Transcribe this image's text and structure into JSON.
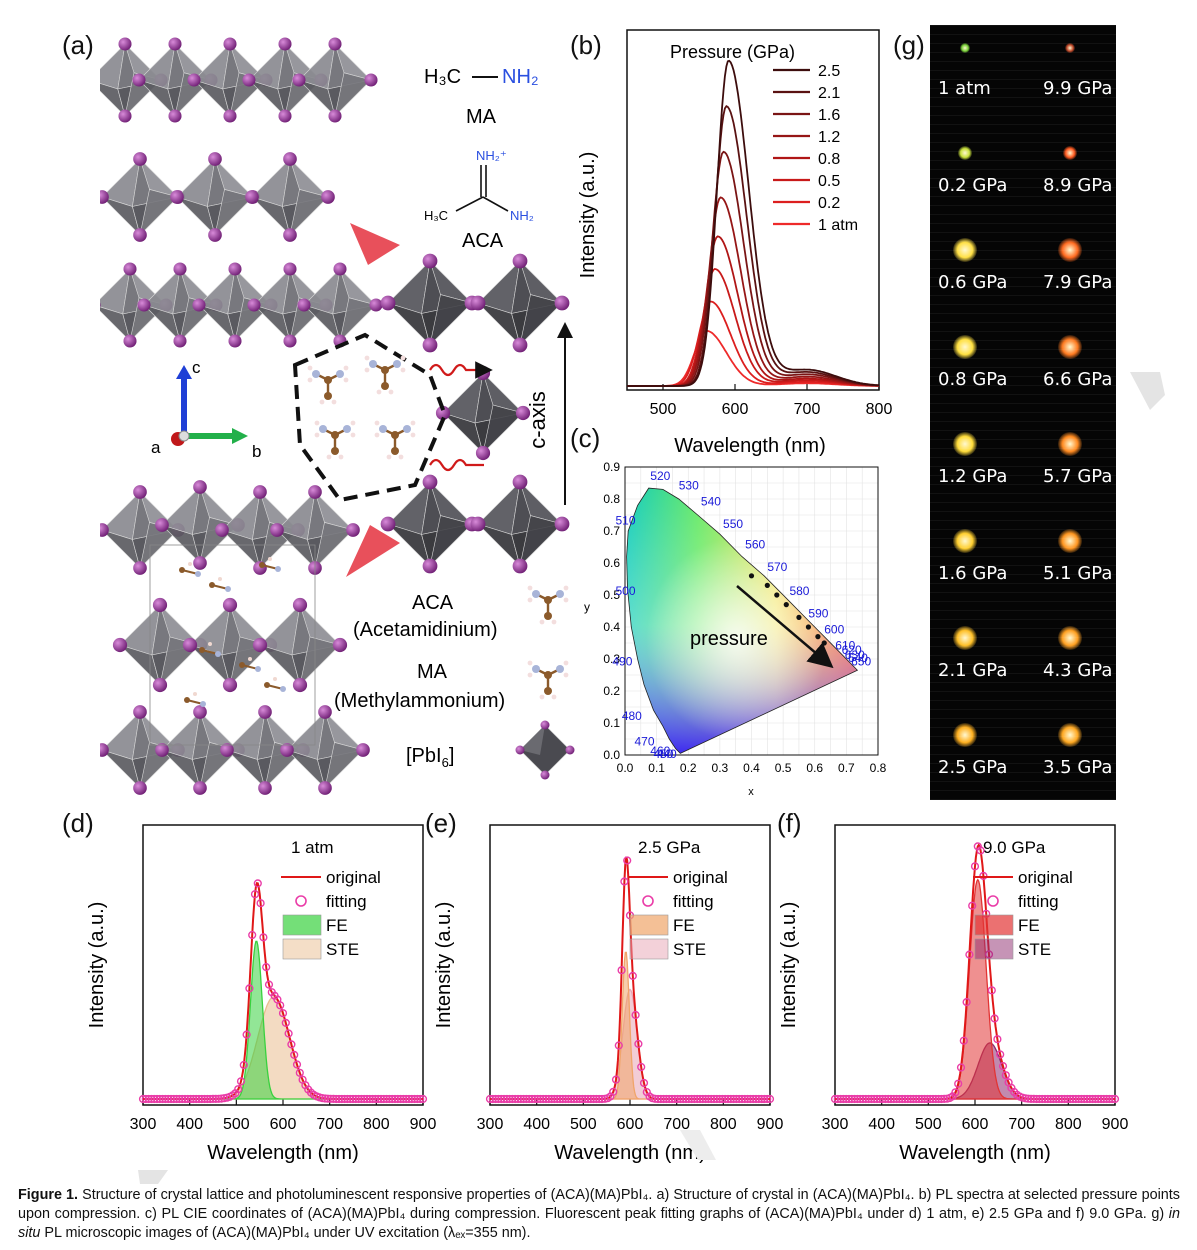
{
  "panels": {
    "a": "(a)",
    "b": "(b)",
    "c": "(c)",
    "d": "(d)",
    "e": "(e)",
    "f": "(f)",
    "g": "(g)"
  },
  "panel_a": {
    "ma_formula_left": "H₃C",
    "ma_formula_right": "NH₂",
    "ma_label": "MA",
    "aca_nh2_plus": "NH₂⁺",
    "aca_h3c": "H₃C",
    "aca_nh2": "NH₂",
    "aca_label": "ACA",
    "axis_c": "c",
    "axis_a": "a",
    "axis_b": "b",
    "c_axis": "c-axis",
    "legend_aca": "ACA",
    "legend_aca_full": "(Acetamidinium)",
    "legend_ma": "MA",
    "legend_ma_full": "(Methylammonium)",
    "legend_pbi6": "[PbI",
    "legend_pbi6_sub": "6",
    "legend_pbi6_close": "]",
    "legend_y": "y",
    "colors": {
      "octahedron": "#4a4a4f",
      "iodine": "#8a2a8e",
      "arrow": "#e8505b",
      "c_axis_blue": "#1f3fd6",
      "b_axis_green": "#22b04a",
      "a_axis_red": "#c0181a"
    }
  },
  "chart_data": [
    {
      "id": "b",
      "type": "line",
      "title": "",
      "xlabel": "Wavelength (nm)",
      "ylabel": "Intensity (a.u.)",
      "xlim": [
        450,
        800
      ],
      "xticks": [
        500,
        600,
        700,
        800
      ],
      "legend_title": "Pressure (GPa)",
      "legend_position": "top-right",
      "series": [
        {
          "name": "2.5",
          "color": "#3d0d0d",
          "peak_x": 591,
          "peak_y": 1.0
        },
        {
          "name": "2.1",
          "color": "#5a1212",
          "peak_x": 588,
          "peak_y": 0.86
        },
        {
          "name": "1.6",
          "color": "#7a1515",
          "peak_x": 584,
          "peak_y": 0.72
        },
        {
          "name": "1.2",
          "color": "#961616",
          "peak_x": 580,
          "peak_y": 0.58
        },
        {
          "name": "0.8",
          "color": "#b01616",
          "peak_x": 576,
          "peak_y": 0.46
        },
        {
          "name": "0.5",
          "color": "#c81a1a",
          "peak_x": 572,
          "peak_y": 0.36
        },
        {
          "name": "0.2",
          "color": "#dc1f1f",
          "peak_x": 566,
          "peak_y": 0.26
        },
        {
          "name": "1 atm",
          "color": "#ee2a2a",
          "peak_x": 560,
          "peak_y": 0.17
        }
      ]
    },
    {
      "id": "c",
      "type": "scatter",
      "title": "",
      "xlabel": "x",
      "ylabel": "",
      "xlim": [
        0.0,
        0.8
      ],
      "ylim": [
        0.0,
        0.9
      ],
      "xticks": [
        "0.0",
        "0.1",
        "0.2",
        "0.3",
        "0.4",
        "0.5",
        "0.6",
        "0.7",
        "0.8"
      ],
      "yticks": [
        "0.0",
        "0.1",
        "0.2",
        "0.3",
        "0.4",
        "0.5",
        "0.6",
        "0.7",
        "0.8",
        "0.9"
      ],
      "wavelength_labels": [
        "520",
        "530",
        "540",
        "550",
        "560",
        "570",
        "580",
        "590",
        "600",
        "610",
        "620",
        "630",
        "640",
        "650",
        "510",
        "500",
        "490",
        "480",
        "470",
        "460",
        "450",
        "440"
      ],
      "annotation": "pressure",
      "points": [
        {
          "x": 0.4,
          "y": 0.56
        },
        {
          "x": 0.45,
          "y": 0.53
        },
        {
          "x": 0.48,
          "y": 0.5
        },
        {
          "x": 0.51,
          "y": 0.47
        },
        {
          "x": 0.55,
          "y": 0.43
        },
        {
          "x": 0.58,
          "y": 0.4
        },
        {
          "x": 0.61,
          "y": 0.37
        },
        {
          "x": 0.63,
          "y": 0.35
        }
      ]
    },
    {
      "id": "d",
      "type": "line",
      "title": "",
      "annotation": "1 atm",
      "xlabel": "Wavelength (nm)",
      "ylabel": "Intensity (a.u.)",
      "xlim": [
        300,
        900
      ],
      "xticks": [
        "300",
        "400",
        "500",
        "600",
        "700",
        "800",
        "900"
      ],
      "legend": [
        "original",
        "fitting",
        "FE",
        "STE"
      ],
      "components": [
        {
          "name": "FE",
          "center": 543,
          "fwhm": 30,
          "amp": 0.62,
          "color": "#39d13f"
        },
        {
          "name": "STE",
          "center": 580,
          "fwhm": 80,
          "amp": 0.4,
          "color": "#e9bd8f"
        }
      ]
    },
    {
      "id": "e",
      "type": "line",
      "title": "",
      "annotation": "2.5 GPa",
      "xlabel": "Wavelength (nm)",
      "ylabel": "Intensity (a.u.)",
      "xlim": [
        300,
        900
      ],
      "xticks": [
        "300",
        "400",
        "500",
        "600",
        "700",
        "800",
        "900"
      ],
      "legend": [
        "original",
        "fitting",
        "FE",
        "STE"
      ],
      "components": [
        {
          "name": "FE",
          "center": 591,
          "fwhm": 18,
          "amp": 0.58,
          "color": "#f0a56a"
        },
        {
          "name": "STE",
          "center": 600,
          "fwhm": 36,
          "amp": 0.43,
          "color": "#e8a4b4"
        }
      ]
    },
    {
      "id": "f",
      "type": "line",
      "title": "",
      "annotation": "9.0 GPa",
      "xlabel": "Wavelength (nm)",
      "ylabel": "Intensity (a.u.)",
      "xlim": [
        300,
        900
      ],
      "xticks": [
        "300",
        "400",
        "500",
        "600",
        "700",
        "800",
        "900"
      ],
      "legend": [
        "original",
        "fitting",
        "FE",
        "STE"
      ],
      "components": [
        {
          "name": "FE",
          "center": 606,
          "fwhm": 42,
          "amp": 0.86,
          "color": "#e23434"
        },
        {
          "name": "STE",
          "center": 632,
          "fwhm": 60,
          "amp": 0.22,
          "color": "#8e2a6e"
        }
      ]
    }
  ],
  "panel_g": {
    "left": [
      "1 atm",
      "0.2 GPa",
      "0.6 GPa",
      "0.8 GPa",
      "1.2 GPa",
      "1.6 GPa",
      "2.1 GPa",
      "2.5 GPa"
    ],
    "right": [
      "9.9 GPa",
      "8.9 GPa",
      "7.9 GPa",
      "6.6 GPa",
      "5.7 GPa",
      "5.1 GPa",
      "4.3 GPa",
      "3.5 GPa"
    ],
    "left_colors": [
      "#7ad13a",
      "#c8e03a",
      "#ffe045",
      "#ffe040",
      "#ffdc3a",
      "#ffcf30",
      "#ffc028",
      "#ffb020"
    ],
    "right_colors": [
      "#c24a2a",
      "#ff5a20",
      "#ff6a20",
      "#ff7a20",
      "#ff8a20",
      "#ff9620",
      "#ffa022",
      "#ffa822"
    ]
  },
  "caption": {
    "figure": "Figure 1.",
    "text1": " Structure of crystal lattice and photoluminescent responsive properties of (ACA)(MA)PbI₄. a) Structure of crystal in (ACA)(MA)PbI₄. b) PL spectra at selected pressure points upon compression. c) PL CIE coordinates of (ACA)(MA)PbI₄ during compression. Fluorescent peak fitting graphs of (ACA)(MA)PbI₄ under d) 1 atm, e) 2.5 GPa and f) 9.0 GPa. g) ",
    "insitu": "in situ",
    "text2": " PL microscopic images of (ACA)(MA)PbI₄ under UV excitation (λₑₓ=355 nm)."
  }
}
